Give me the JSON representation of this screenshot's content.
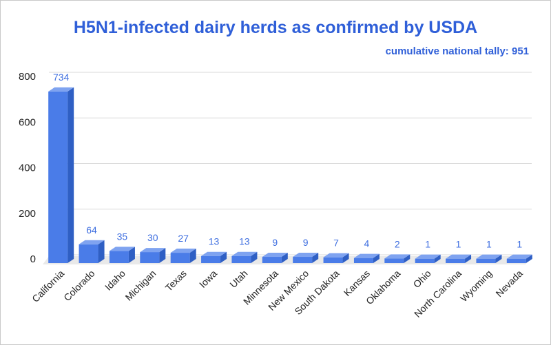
{
  "chart_data": {
    "type": "bar",
    "title": "H5N1-infected dairy herds as confirmed by USDA",
    "subtitle": "cumulative national tally: 951",
    "xlabel": "",
    "ylabel": "",
    "ylim": [
      0,
      800
    ],
    "yticks": [
      0,
      200,
      400,
      600,
      800
    ],
    "grid": true,
    "legend": false,
    "bar_color": "#4a7ce8",
    "label_color": "#3f6fe0",
    "categories": [
      "California",
      "Colorado",
      "Idaho",
      "Michigan",
      "Texas",
      "Iowa",
      "Utah",
      "Minnesota",
      "New Mexico",
      "South Dakota",
      "Kansas",
      "Oklahoma",
      "Ohio",
      "North Carolina",
      "Wyoming",
      "Nevada"
    ],
    "values": [
      734,
      64,
      35,
      30,
      27,
      13,
      13,
      9,
      9,
      7,
      4,
      2,
      1,
      1,
      1,
      1
    ],
    "data_labels": [
      "734",
      "64",
      "35",
      "30",
      "27",
      "13",
      "13",
      "9",
      "9",
      "7",
      "4",
      "2",
      "1",
      "1",
      "1",
      "1"
    ]
  }
}
